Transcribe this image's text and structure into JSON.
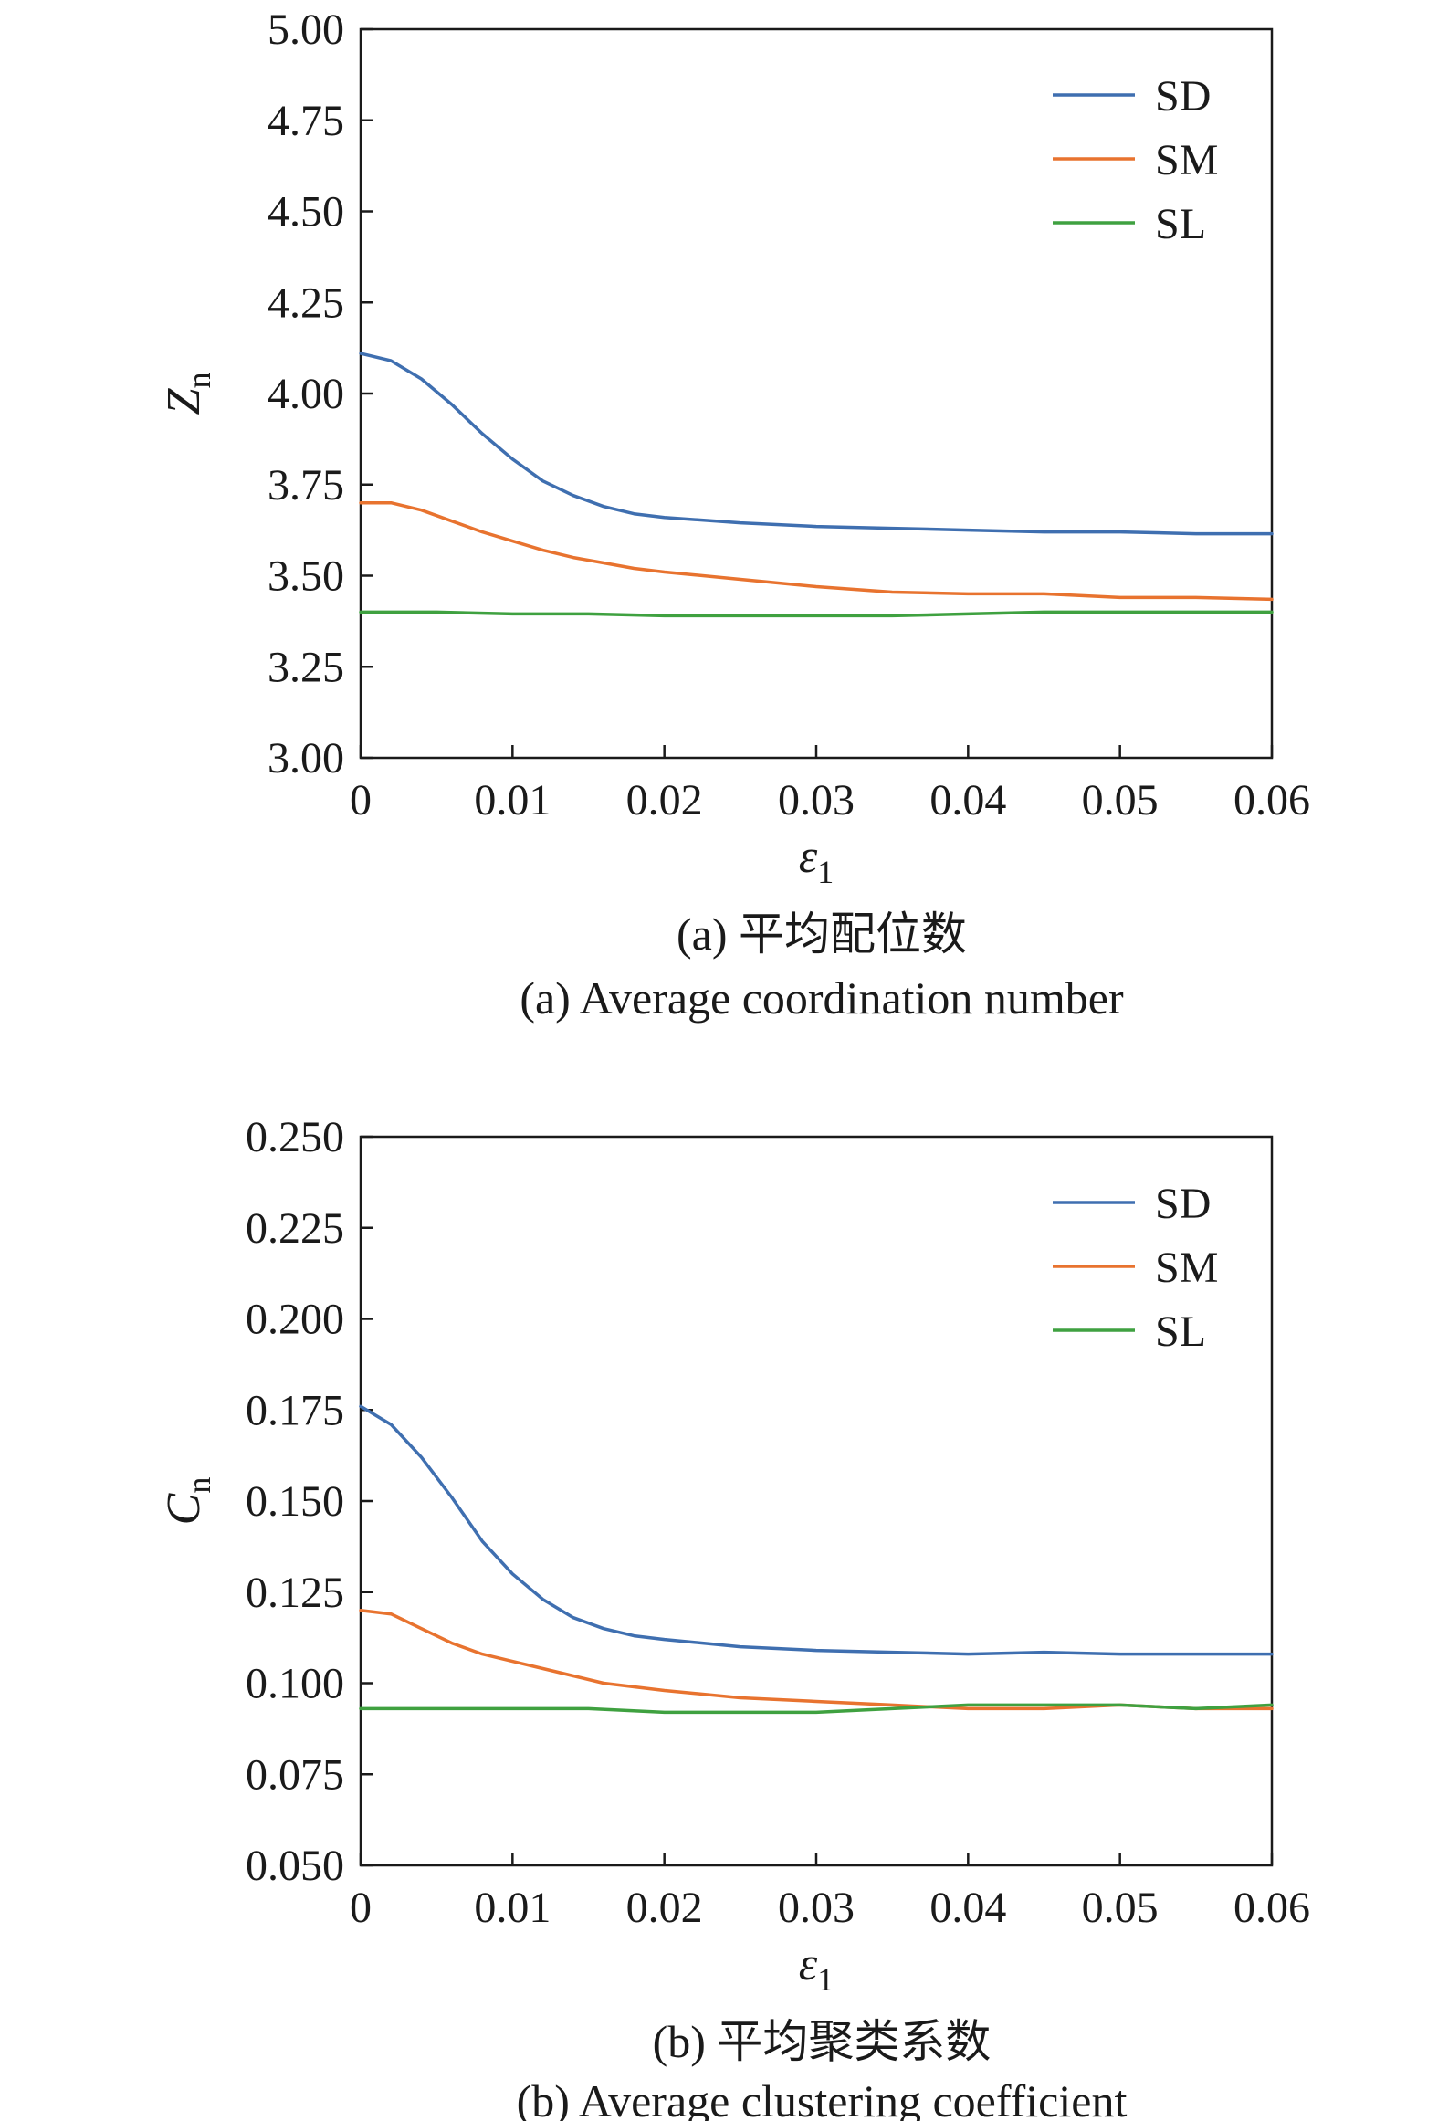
{
  "colors": {
    "SD": "#3f6fb0",
    "SM": "#e8732f",
    "SL": "#3fa140",
    "axis": "#1a1a1a"
  },
  "chart_data": [
    {
      "type": "line",
      "caption_zh": "(a) 平均配位数",
      "caption_en": "(a) Average coordination number",
      "ylabel": {
        "main": "Z",
        "sub": "n"
      },
      "xlabel": {
        "main": "ε",
        "sub": "1"
      },
      "xlim": [
        0,
        0.06
      ],
      "ylim": [
        3.0,
        5.0
      ],
      "xticks": [
        0,
        0.01,
        0.02,
        0.03,
        0.04,
        0.05,
        0.06
      ],
      "xtick_labels": [
        "0",
        "0.01",
        "0.02",
        "0.03",
        "0.04",
        "0.05",
        "0.06"
      ],
      "yticks": [
        3.0,
        3.25,
        3.5,
        3.75,
        4.0,
        4.25,
        4.5,
        4.75,
        5.0
      ],
      "ytick_labels": [
        "3.00",
        "3.25",
        "3.50",
        "3.75",
        "4.00",
        "4.25",
        "4.50",
        "4.75",
        "5.00"
      ],
      "legend_position": "top-right",
      "series": [
        {
          "name": "SD",
          "color": "#3f6fb0",
          "x": [
            0,
            0.002,
            0.004,
            0.006,
            0.008,
            0.01,
            0.012,
            0.014,
            0.016,
            0.018,
            0.02,
            0.025,
            0.03,
            0.035,
            0.04,
            0.045,
            0.05,
            0.055,
            0.06
          ],
          "y": [
            4.11,
            4.09,
            4.04,
            3.97,
            3.89,
            3.82,
            3.76,
            3.72,
            3.69,
            3.67,
            3.66,
            3.645,
            3.635,
            3.63,
            3.625,
            3.62,
            3.62,
            3.615,
            3.615
          ]
        },
        {
          "name": "SM",
          "color": "#e8732f",
          "x": [
            0,
            0.002,
            0.004,
            0.006,
            0.008,
            0.01,
            0.012,
            0.014,
            0.016,
            0.018,
            0.02,
            0.025,
            0.03,
            0.035,
            0.04,
            0.045,
            0.05,
            0.055,
            0.06
          ],
          "y": [
            3.7,
            3.7,
            3.68,
            3.65,
            3.62,
            3.595,
            3.57,
            3.55,
            3.535,
            3.52,
            3.51,
            3.49,
            3.47,
            3.455,
            3.45,
            3.45,
            3.44,
            3.44,
            3.435
          ]
        },
        {
          "name": "SL",
          "color": "#3fa140",
          "x": [
            0,
            0.005,
            0.01,
            0.015,
            0.02,
            0.025,
            0.03,
            0.035,
            0.04,
            0.045,
            0.05,
            0.055,
            0.06
          ],
          "y": [
            3.4,
            3.4,
            3.395,
            3.395,
            3.39,
            3.39,
            3.39,
            3.39,
            3.395,
            3.4,
            3.4,
            3.4,
            3.4
          ]
        }
      ]
    },
    {
      "type": "line",
      "caption_zh": "(b) 平均聚类系数",
      "caption_en": "(b) Average clustering coefficient",
      "ylabel": {
        "main": "C",
        "sub": "n"
      },
      "xlabel": {
        "main": "ε",
        "sub": "1"
      },
      "xlim": [
        0,
        0.06
      ],
      "ylim": [
        0.05,
        0.25
      ],
      "xticks": [
        0,
        0.01,
        0.02,
        0.03,
        0.04,
        0.05,
        0.06
      ],
      "xtick_labels": [
        "0",
        "0.01",
        "0.02",
        "0.03",
        "0.04",
        "0.05",
        "0.06"
      ],
      "yticks": [
        0.05,
        0.075,
        0.1,
        0.125,
        0.15,
        0.175,
        0.2,
        0.225,
        0.25
      ],
      "ytick_labels": [
        "0.050",
        "0.075",
        "0.100",
        "0.125",
        "0.150",
        "0.175",
        "0.200",
        "0.225",
        "0.250"
      ],
      "legend_position": "top-right",
      "series": [
        {
          "name": "SD",
          "color": "#3f6fb0",
          "x": [
            0,
            0.002,
            0.004,
            0.006,
            0.008,
            0.01,
            0.012,
            0.014,
            0.016,
            0.018,
            0.02,
            0.025,
            0.03,
            0.035,
            0.04,
            0.045,
            0.05,
            0.055,
            0.06
          ],
          "y": [
            0.176,
            0.171,
            0.162,
            0.151,
            0.139,
            0.13,
            0.123,
            0.118,
            0.115,
            0.113,
            0.112,
            0.11,
            0.109,
            0.1085,
            0.108,
            0.1085,
            0.108,
            0.108,
            0.108
          ]
        },
        {
          "name": "SM",
          "color": "#e8732f",
          "x": [
            0,
            0.002,
            0.004,
            0.006,
            0.008,
            0.01,
            0.012,
            0.014,
            0.016,
            0.018,
            0.02,
            0.025,
            0.03,
            0.035,
            0.04,
            0.045,
            0.05,
            0.055,
            0.06
          ],
          "y": [
            0.12,
            0.119,
            0.115,
            0.111,
            0.108,
            0.106,
            0.104,
            0.102,
            0.1,
            0.099,
            0.098,
            0.096,
            0.095,
            0.094,
            0.093,
            0.093,
            0.094,
            0.093,
            0.093
          ]
        },
        {
          "name": "SL",
          "color": "#3fa140",
          "x": [
            0,
            0.005,
            0.01,
            0.015,
            0.02,
            0.025,
            0.03,
            0.035,
            0.04,
            0.045,
            0.05,
            0.055,
            0.06
          ],
          "y": [
            0.093,
            0.093,
            0.093,
            0.093,
            0.092,
            0.092,
            0.092,
            0.093,
            0.094,
            0.094,
            0.094,
            0.093,
            0.094
          ]
        }
      ]
    }
  ]
}
